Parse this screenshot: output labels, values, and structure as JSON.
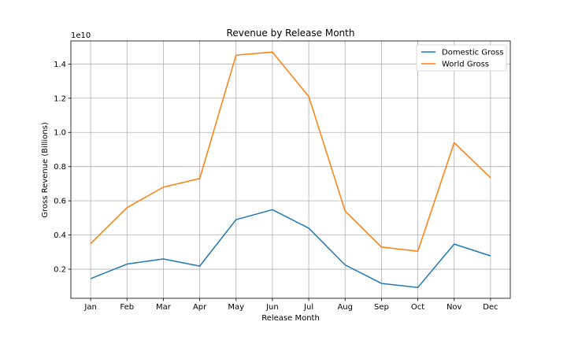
{
  "chart_data": {
    "type": "line",
    "title": "Revenue by Release Month",
    "xlabel": "Release Month",
    "ylabel": "Gross Revenue (Billions)",
    "y_offset_label": "1e10",
    "categories": [
      "Jan",
      "Feb",
      "Mar",
      "Apr",
      "May",
      "Jun",
      "Jul",
      "Aug",
      "Sep",
      "Oct",
      "Nov",
      "Dec"
    ],
    "series": [
      {
        "name": "Domestic Gross",
        "color": "#1f77b4",
        "values": [
          0.145,
          0.23,
          0.26,
          0.218,
          0.49,
          0.548,
          0.44,
          0.225,
          0.117,
          0.093,
          0.347,
          0.278
        ]
      },
      {
        "name": "World Gross",
        "color": "#ff7f0e",
        "values": [
          0.35,
          0.56,
          0.68,
          0.73,
          1.452,
          1.47,
          1.21,
          0.54,
          0.33,
          0.305,
          0.94,
          0.735
        ]
      }
    ],
    "yticks": [
      "0.2",
      "0.4",
      "0.6",
      "0.8",
      "1.0",
      "1.2",
      "1.4"
    ],
    "ylim": [
      0.03,
      1.535
    ],
    "grid": true,
    "legend_position": "top-right"
  }
}
